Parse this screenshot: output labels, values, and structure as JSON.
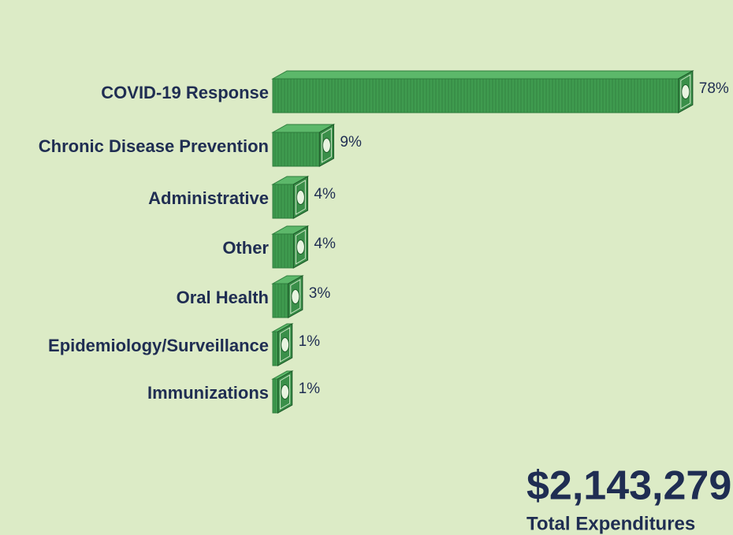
{
  "chart_data": {
    "type": "bar",
    "orientation": "horizontal",
    "categories": [
      "COVID-19 Response",
      "Chronic Disease Prevention",
      "Administrative",
      "Other",
      "Oral Health",
      "Epidemiology/Surveillance",
      "Immunizations"
    ],
    "values": [
      78,
      9,
      4,
      4,
      3,
      1,
      1
    ],
    "value_labels": [
      "78%",
      "9%",
      "4%",
      "4%",
      "3%",
      "1%",
      "1%"
    ],
    "color": "#3f9b4f"
  },
  "summary": {
    "total": "$2,143,279",
    "label": "Total Expenditures"
  }
}
